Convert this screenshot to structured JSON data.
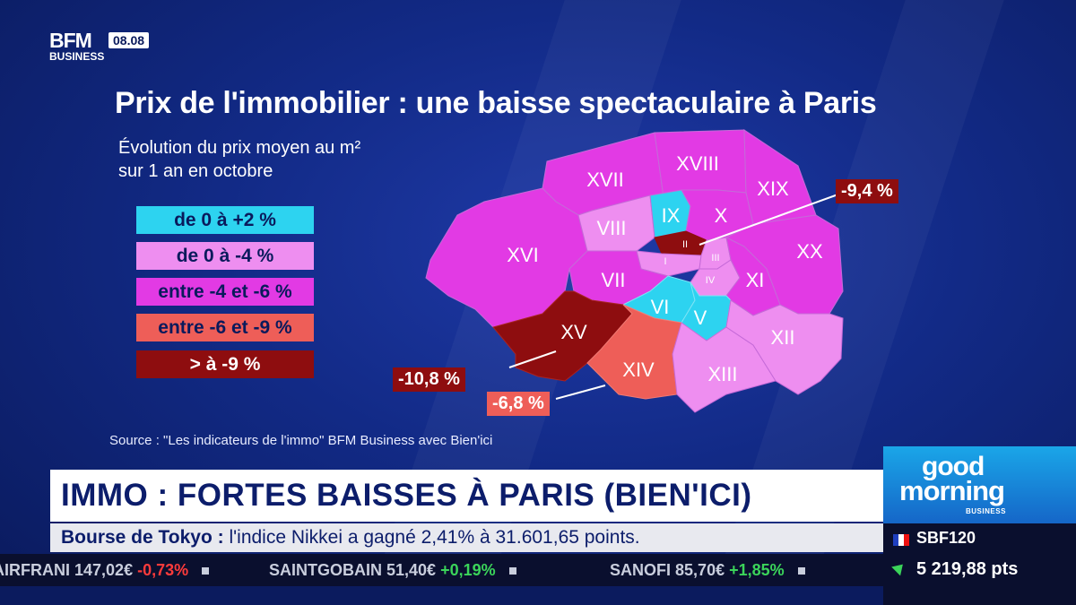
{
  "channel": {
    "logo_top": "BFM",
    "logo_bottom": "BUSINESS",
    "clock": "08.08"
  },
  "title": "Prix de l'immobilier : une baisse spectaculaire à Paris",
  "subtitle_line1": "Évolution du prix moyen au m²",
  "subtitle_line2": "sur 1 an en octobre",
  "legend": [
    {
      "label": "de 0 à +2 %",
      "color": "#2dd3f0"
    },
    {
      "label": "de 0 à -4 %",
      "color": "#ee8ef0"
    },
    {
      "label": "entre -4 et -6 %",
      "color": "#e23ae4"
    },
    {
      "label": "entre -6 et -9 %",
      "color": "#ee5e58"
    },
    {
      "label": "> à -9 %",
      "color": "#8e0d0f"
    }
  ],
  "arrondissements": [
    {
      "label": "I",
      "class": 1
    },
    {
      "label": "II",
      "class": 4
    },
    {
      "label": "III",
      "class": 1
    },
    {
      "label": "IV",
      "class": 1
    },
    {
      "label": "V",
      "class": 0
    },
    {
      "label": "VI",
      "class": 0
    },
    {
      "label": "VII",
      "class": 2
    },
    {
      "label": "VIII",
      "class": 1
    },
    {
      "label": "IX",
      "class": 0
    },
    {
      "label": "X",
      "class": 2
    },
    {
      "label": "XI",
      "class": 2
    },
    {
      "label": "XII",
      "class": 1
    },
    {
      "label": "XIII",
      "class": 1
    },
    {
      "label": "XIV",
      "class": 3
    },
    {
      "label": "XV",
      "class": 4
    },
    {
      "label": "XVI",
      "class": 2
    },
    {
      "label": "XVII",
      "class": 2
    },
    {
      "label": "XVIII",
      "class": 2
    },
    {
      "label": "XIX",
      "class": 2
    },
    {
      "label": "XX",
      "class": 2
    }
  ],
  "callouts": {
    "ii": "-9,4 %",
    "xv": "-10,8 %",
    "xiv": "-6,8 %"
  },
  "source": "Source : \"Les indicateurs de l'immo\" BFM Business avec Bien'ici",
  "headline": "IMMO : FORTES BAISSES À PARIS (BIEN'ICI)",
  "show": {
    "line1": "good",
    "line2": "morning",
    "line3": "BUSINESS"
  },
  "ticker": {
    "label": "Bourse de Tokyo :",
    "text": " l'indice Nikkei a gagné 2,41% à 31.601,65 points."
  },
  "stocks": [
    {
      "name": "AIRFRANI",
      "price": "147,02€",
      "change": "-0,73%"
    },
    {
      "name": "SAINTGOBAIN",
      "price": "51,40€",
      "change": "+0,19%"
    },
    {
      "name": "SANOFI",
      "price": "85,70€",
      "change": "+1,85%"
    }
  ],
  "index": {
    "name": "SBF120",
    "value": "5 219,88 pts"
  }
}
